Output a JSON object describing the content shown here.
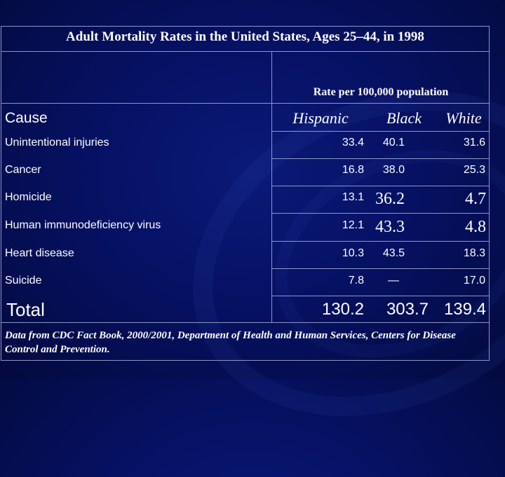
{
  "table": {
    "title": "Adult Mortality Rates in the United States, Ages 25–44, in 1998",
    "subtitle": "Rate per 100,000 population",
    "cause_header": "Cause",
    "columns": [
      "Hispanic",
      "Black",
      "White"
    ],
    "rows": [
      {
        "cause": "Unintentional injuries",
        "hispanic": "33.4",
        "black": "40.1",
        "white": "31.6"
      },
      {
        "cause": "Cancer",
        "hispanic": "16.8",
        "black": "38.0",
        "white": "25.3"
      },
      {
        "cause": "Homicide",
        "hispanic": "13.1",
        "black": "36.2",
        "white": "4.7"
      },
      {
        "cause": "Human immunodeficiency virus",
        "hispanic": "12.1",
        "black": "43.3",
        "white": "4.8"
      },
      {
        "cause": "Heart disease",
        "hispanic": "10.3",
        "black": "43.5",
        "white": "18.3"
      },
      {
        "cause": "Suicide",
        "hispanic": "7.8",
        "black": "—",
        "white": "17.0"
      }
    ],
    "total": {
      "label": "Total",
      "hispanic": "130.2",
      "black": "303.7",
      "white": "139.4"
    },
    "footnote": "Data from CDC Fact Book, 2000/2001, Department of Health and Human Services, Centers for Disease Control and Prevention."
  }
}
